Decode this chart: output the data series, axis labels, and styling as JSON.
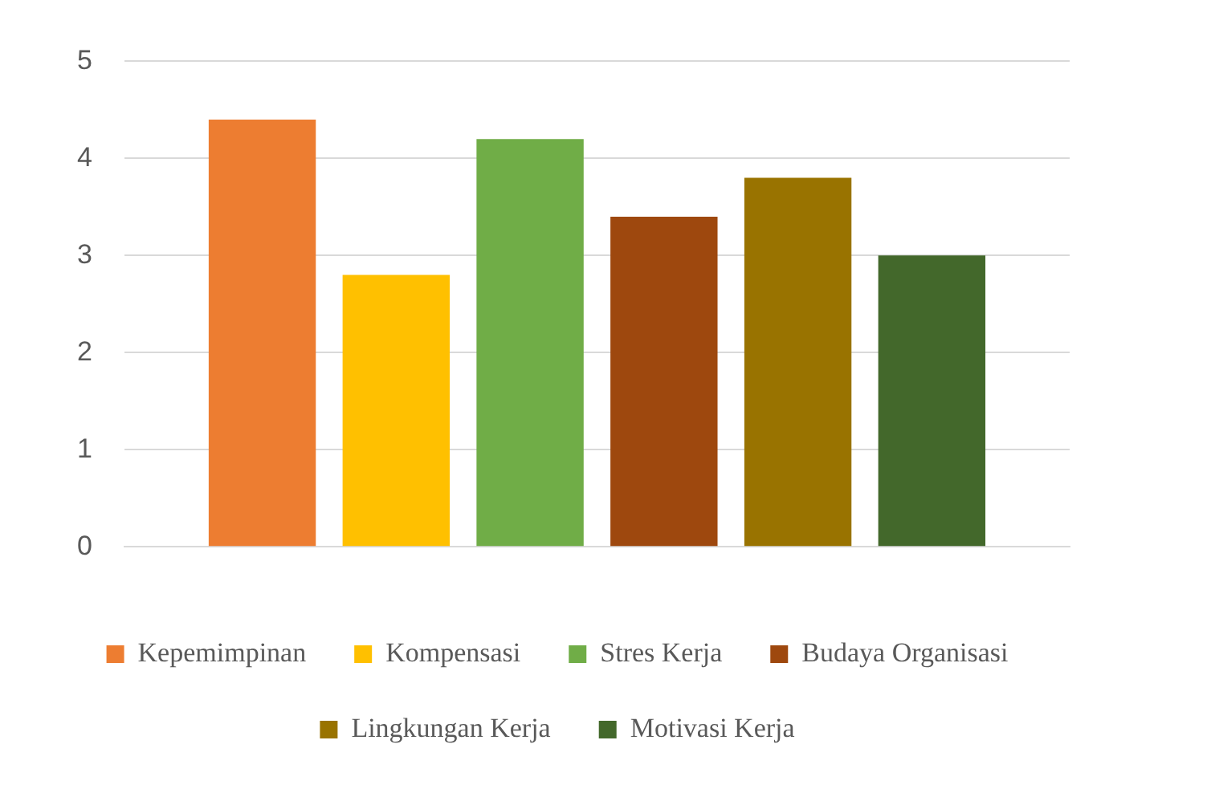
{
  "chart_data": {
    "type": "bar",
    "categories": [
      null
    ],
    "series": [
      {
        "name": "Kepemimpinan",
        "color": "#ed7d31",
        "values": [
          4.4
        ]
      },
      {
        "name": "Kompensasi",
        "color": "#ffc000",
        "values": [
          2.8
        ]
      },
      {
        "name": "Stres Kerja",
        "color": "#70ad47",
        "values": [
          4.2
        ]
      },
      {
        "name": "Budaya Organisasi",
        "color": "#9e480e",
        "values": [
          3.4
        ]
      },
      {
        "name": "Lingkungan Kerja",
        "color": "#997300",
        "values": [
          3.8
        ]
      },
      {
        "name": "Motivasi Kerja",
        "color": "#43682b",
        "values": [
          3.0
        ]
      }
    ],
    "ylim": [
      0,
      5
    ],
    "yticks": [
      0,
      1,
      2,
      3,
      4,
      5
    ],
    "grid": "y",
    "legend": "bottom"
  }
}
